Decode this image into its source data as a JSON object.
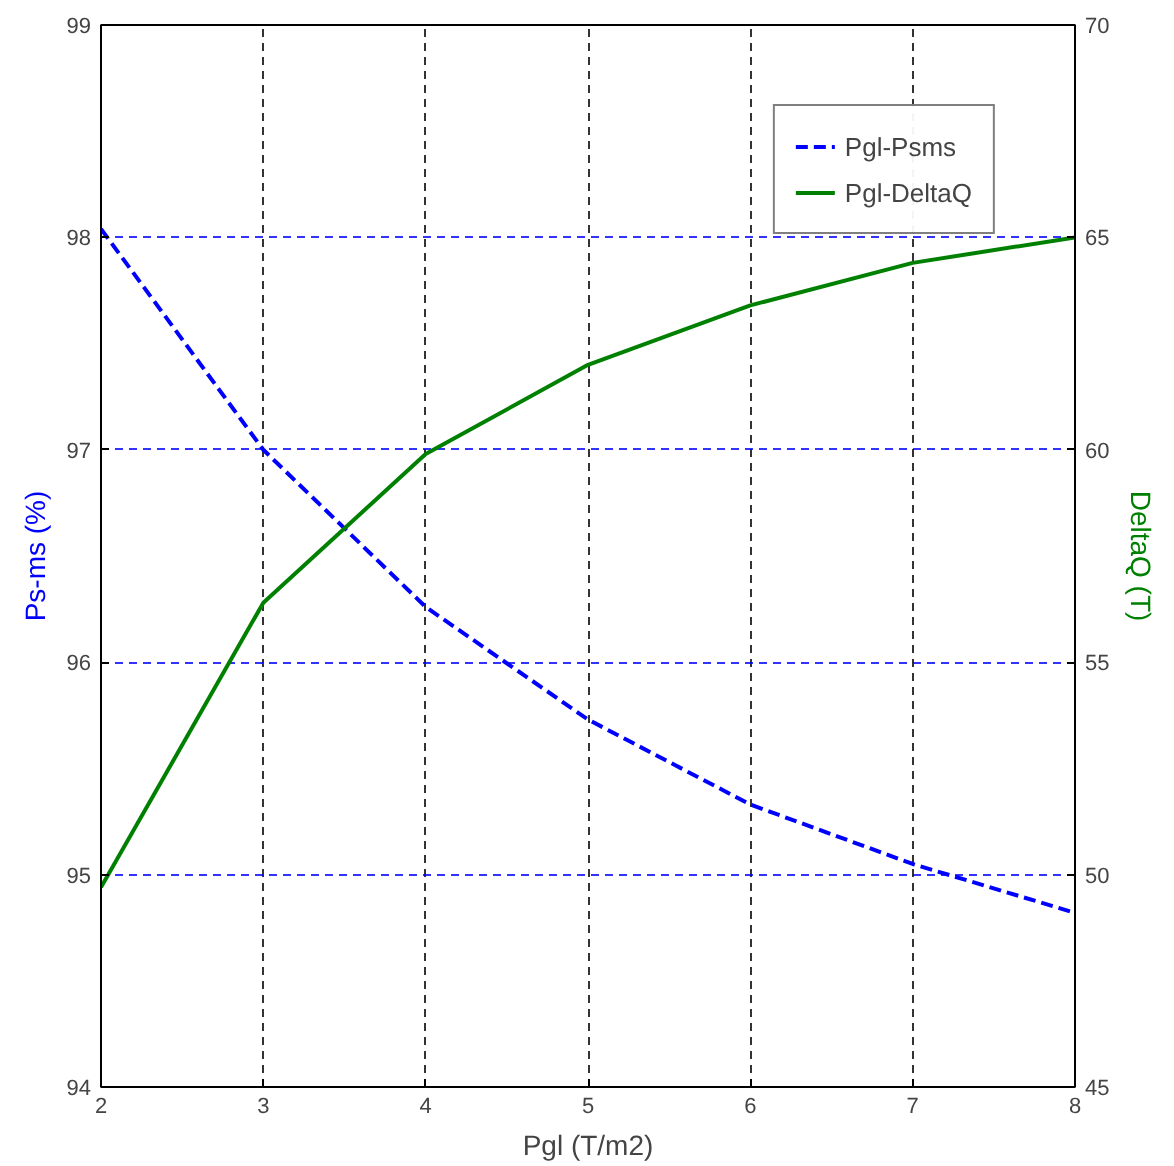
{
  "chart_data": {
    "type": "line",
    "xlabel": "Pgl (T/m2)",
    "ylabel": "Ps-ms (%)",
    "y2label": "DeltaQ (T)",
    "x": [
      2,
      3,
      4,
      5,
      6,
      7,
      8
    ],
    "series": [
      {
        "name": "Pgl-Psms",
        "color": "#0000ff",
        "line_style": "dashed",
        "values": [
          98.04,
          97.0,
          96.26,
          95.73,
          95.33,
          95.05,
          94.82
        ]
      },
      {
        "name": "Pgl-DeltaQ",
        "color": "#008000",
        "line_style": "solid",
        "axis": "y2",
        "values": [
          49.7,
          56.4,
          59.9,
          62.0,
          63.4,
          64.4,
          65.0
        ]
      }
    ],
    "xlim": [
      2,
      8
    ],
    "xticks": [
      2,
      3,
      4,
      5,
      6,
      7,
      8
    ],
    "ylim": [
      94,
      99
    ],
    "yticks": [
      94,
      95,
      96,
      97,
      98,
      99
    ],
    "y2lim": [
      45,
      70
    ],
    "y2ticks": [
      45,
      50,
      55,
      60,
      65,
      70
    ],
    "grid": true,
    "legend": "top right",
    "marker": "none"
  }
}
